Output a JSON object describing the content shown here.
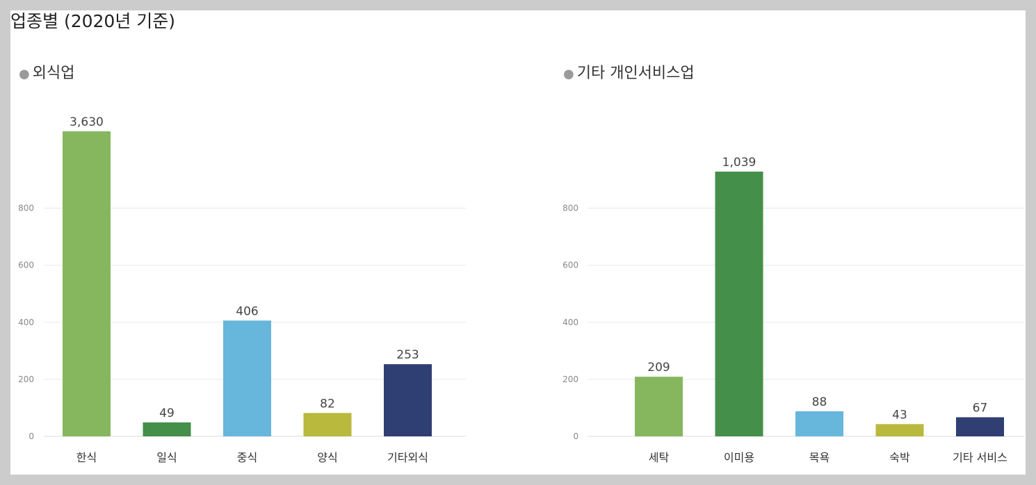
{
  "page": {
    "title": "업종별 (2020년 기준)"
  },
  "chart_data": [
    {
      "type": "bar",
      "title": "외식업",
      "categories": [
        "한식",
        "일식",
        "중식",
        "양식",
        "기타외식"
      ],
      "values": [
        3630,
        49,
        406,
        82,
        253
      ],
      "value_labels": [
        "3,630",
        "49",
        "406",
        "82",
        "253"
      ],
      "yticks": [
        0,
        200,
        400,
        600,
        800
      ],
      "ylim": [
        0,
        1000
      ],
      "colors": [
        "#86b75e",
        "#448f4a",
        "#67b6dc",
        "#b9b93e",
        "#2f3e73"
      ],
      "grid": true,
      "axis_break": "top bar truncated"
    },
    {
      "type": "bar",
      "title": "기타 개인서비스업",
      "categories": [
        "세탁",
        "이미용",
        "목욕",
        "숙박",
        "기타 서비스"
      ],
      "values": [
        209,
        1039,
        88,
        43,
        67
      ],
      "value_labels": [
        "209",
        "1,039",
        "88",
        "43",
        "67"
      ],
      "yticks": [
        0,
        200,
        400,
        600,
        800
      ],
      "ylim": [
        0,
        1000
      ],
      "colors": [
        "#86b75e",
        "#448f4a",
        "#67b6dc",
        "#b9b93e",
        "#2f3e73"
      ],
      "grid": true,
      "axis_break": "top bar truncated"
    }
  ]
}
